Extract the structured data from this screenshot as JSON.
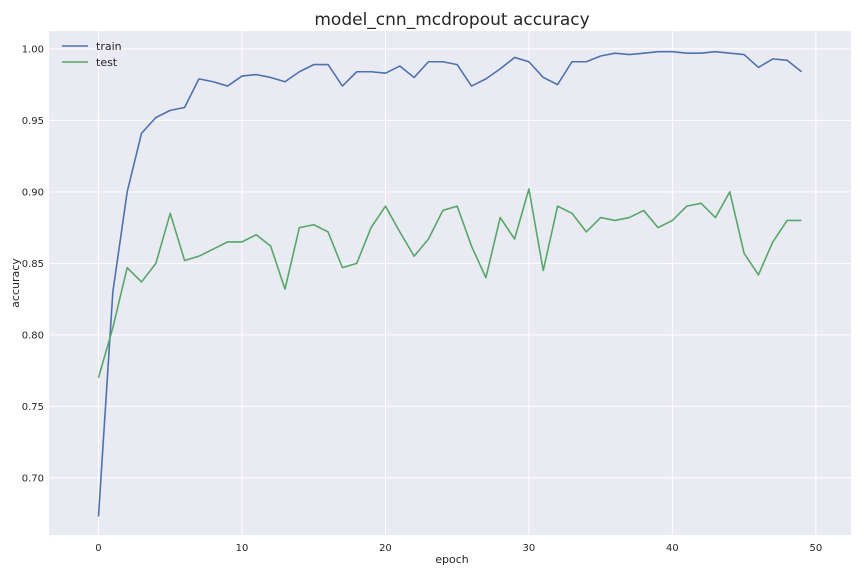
{
  "chart_data": {
    "type": "line",
    "title": "model_cnn_mcdropout accuracy",
    "xlabel": "epoch",
    "ylabel": "accuracy",
    "xlim": [
      -3.45,
      52.45
    ],
    "ylim": [
      0.66,
      1.0125
    ],
    "xticks": [
      0,
      10,
      20,
      30,
      40,
      50
    ],
    "yticks": [
      0.7,
      0.75,
      0.8,
      0.85,
      0.9,
      0.95,
      1.0
    ],
    "ytick_labels": [
      "0.70",
      "0.75",
      "0.80",
      "0.85",
      "0.90",
      "0.95",
      "1.00"
    ],
    "grid": true,
    "legend_position": "top-left",
    "x": [
      0,
      1,
      2,
      3,
      4,
      5,
      6,
      7,
      8,
      9,
      10,
      11,
      12,
      13,
      14,
      15,
      16,
      17,
      18,
      19,
      20,
      21,
      22,
      23,
      24,
      25,
      26,
      27,
      28,
      29,
      30,
      31,
      32,
      33,
      34,
      35,
      36,
      37,
      38,
      39,
      40,
      41,
      42,
      43,
      44,
      45,
      46,
      47,
      48,
      49
    ],
    "series": [
      {
        "name": "train",
        "color": "#4c72b0",
        "values": [
          0.673,
          0.83,
          0.9,
          0.941,
          0.952,
          0.957,
          0.959,
          0.979,
          0.977,
          0.974,
          0.981,
          0.982,
          0.98,
          0.977,
          0.984,
          0.989,
          0.989,
          0.974,
          0.984,
          0.984,
          0.983,
          0.988,
          0.98,
          0.991,
          0.991,
          0.989,
          0.974,
          0.979,
          0.986,
          0.994,
          0.991,
          0.98,
          0.975,
          0.991,
          0.991,
          0.995,
          0.997,
          0.996,
          0.997,
          0.998,
          0.998,
          0.997,
          0.997,
          0.998,
          0.997,
          0.996,
          0.987,
          0.993,
          0.992,
          0.984
        ]
      },
      {
        "name": "test",
        "color": "#55a868",
        "values": [
          0.77,
          0.805,
          0.847,
          0.837,
          0.85,
          0.885,
          0.852,
          0.855,
          0.86,
          0.865,
          0.865,
          0.87,
          0.862,
          0.832,
          0.875,
          0.877,
          0.872,
          0.847,
          0.85,
          0.875,
          0.89,
          0.872,
          0.855,
          0.867,
          0.887,
          0.89,
          0.862,
          0.84,
          0.882,
          0.867,
          0.902,
          0.845,
          0.89,
          0.885,
          0.872,
          0.882,
          0.88,
          0.882,
          0.887,
          0.875,
          0.88,
          0.89,
          0.892,
          0.882,
          0.9,
          0.857,
          0.842,
          0.865,
          0.88,
          0.88
        ]
      }
    ]
  },
  "style": {
    "axes_bg": "#eaeaf2",
    "grid_color": "#ffffff",
    "text_color": "#262626"
  }
}
